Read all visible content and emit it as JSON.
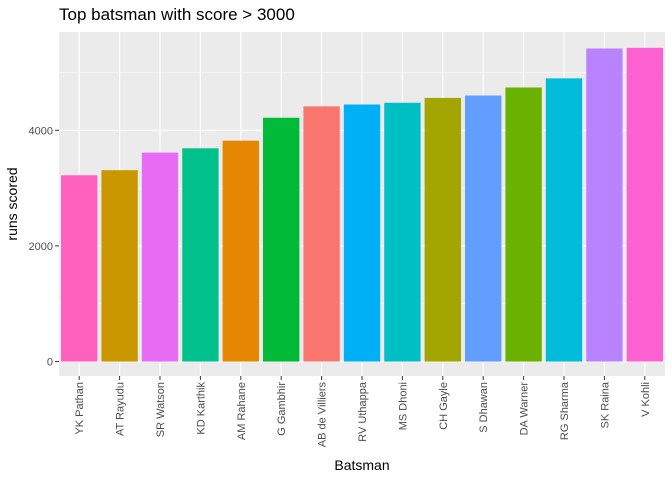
{
  "chart_data": {
    "type": "bar",
    "title": "Top batsman with score > 3000",
    "xlabel": "Batsman",
    "ylabel": "runs scored",
    "ylim": [
      0,
      5700
    ],
    "yticks": [
      0,
      2000,
      4000
    ],
    "grid": true,
    "legend": "none",
    "categories": [
      "YK Pathan",
      "AT Rayudu",
      "SR Watson",
      "KD Karthik",
      "AM Rahane",
      "G Gambhir",
      "AB de Villiers",
      "RV Uthappa",
      "MS Dhoni",
      "CH Gayle",
      "S Dhawan",
      "DA Warner",
      "RG Sharma",
      "SK Raina",
      "V Kohli"
    ],
    "values": [
      3222,
      3310,
      3614,
      3688,
      3820,
      4217,
      4414,
      4446,
      4476,
      4560,
      4601,
      4740,
      4898,
      5415,
      5426
    ],
    "colors": [
      "#FF62BC",
      "#C99800",
      "#E76BF3",
      "#00C08B",
      "#E58700",
      "#00BA38",
      "#F8766D",
      "#00B0F6",
      "#00BFC4",
      "#A3A500",
      "#619CFF",
      "#6BB100",
      "#00BCD8",
      "#B983FF",
      "#FD61D1"
    ],
    "panel_background": "#EBEBEB",
    "grid_color": "#FFFFFF"
  }
}
